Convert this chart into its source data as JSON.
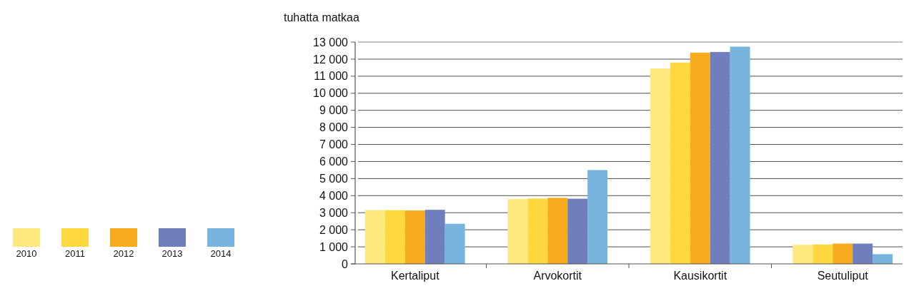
{
  "chart_data": {
    "type": "bar",
    "ylabel": "tuhatta matkaa",
    "categories": [
      "Kertaliput",
      "Arvokortit",
      "Kausikortit",
      "Seutuliput"
    ],
    "series": [
      {
        "name": "2010",
        "color": "#ffe97f",
        "values": [
          3150,
          3800,
          11450,
          1120
        ]
      },
      {
        "name": "2011",
        "color": "#ffd73f",
        "values": [
          3150,
          3830,
          11800,
          1140
        ]
      },
      {
        "name": "2012",
        "color": "#f6aa1c",
        "values": [
          3130,
          3870,
          12380,
          1190
        ]
      },
      {
        "name": "2013",
        "color": "#6f7fbd",
        "values": [
          3170,
          3820,
          12420,
          1190
        ]
      },
      {
        "name": "2014",
        "color": "#77b5df",
        "values": [
          2350,
          5500,
          12730,
          570
        ]
      }
    ],
    "ylim": [
      0,
      13000
    ],
    "yticks": [
      {
        "value": 0,
        "label": "0"
      },
      {
        "value": 1000,
        "label": "1 000"
      },
      {
        "value": 2000,
        "label": "2 000"
      },
      {
        "value": 3000,
        "label": "3 000"
      },
      {
        "value": 4000,
        "label": "4 000"
      },
      {
        "value": 5000,
        "label": "5 000"
      },
      {
        "value": 6000,
        "label": "6 000"
      },
      {
        "value": 7000,
        "label": "7 000"
      },
      {
        "value": 8000,
        "label": "8 000"
      },
      {
        "value": 9000,
        "label": "9 000"
      },
      {
        "value": 10000,
        "label": "10 000"
      },
      {
        "value": 11000,
        "label": "11 000"
      },
      {
        "value": 12000,
        "label": "12 000"
      },
      {
        "value": 13000,
        "label": "13 000"
      }
    ],
    "grid": "y",
    "legend": "bottom left"
  }
}
